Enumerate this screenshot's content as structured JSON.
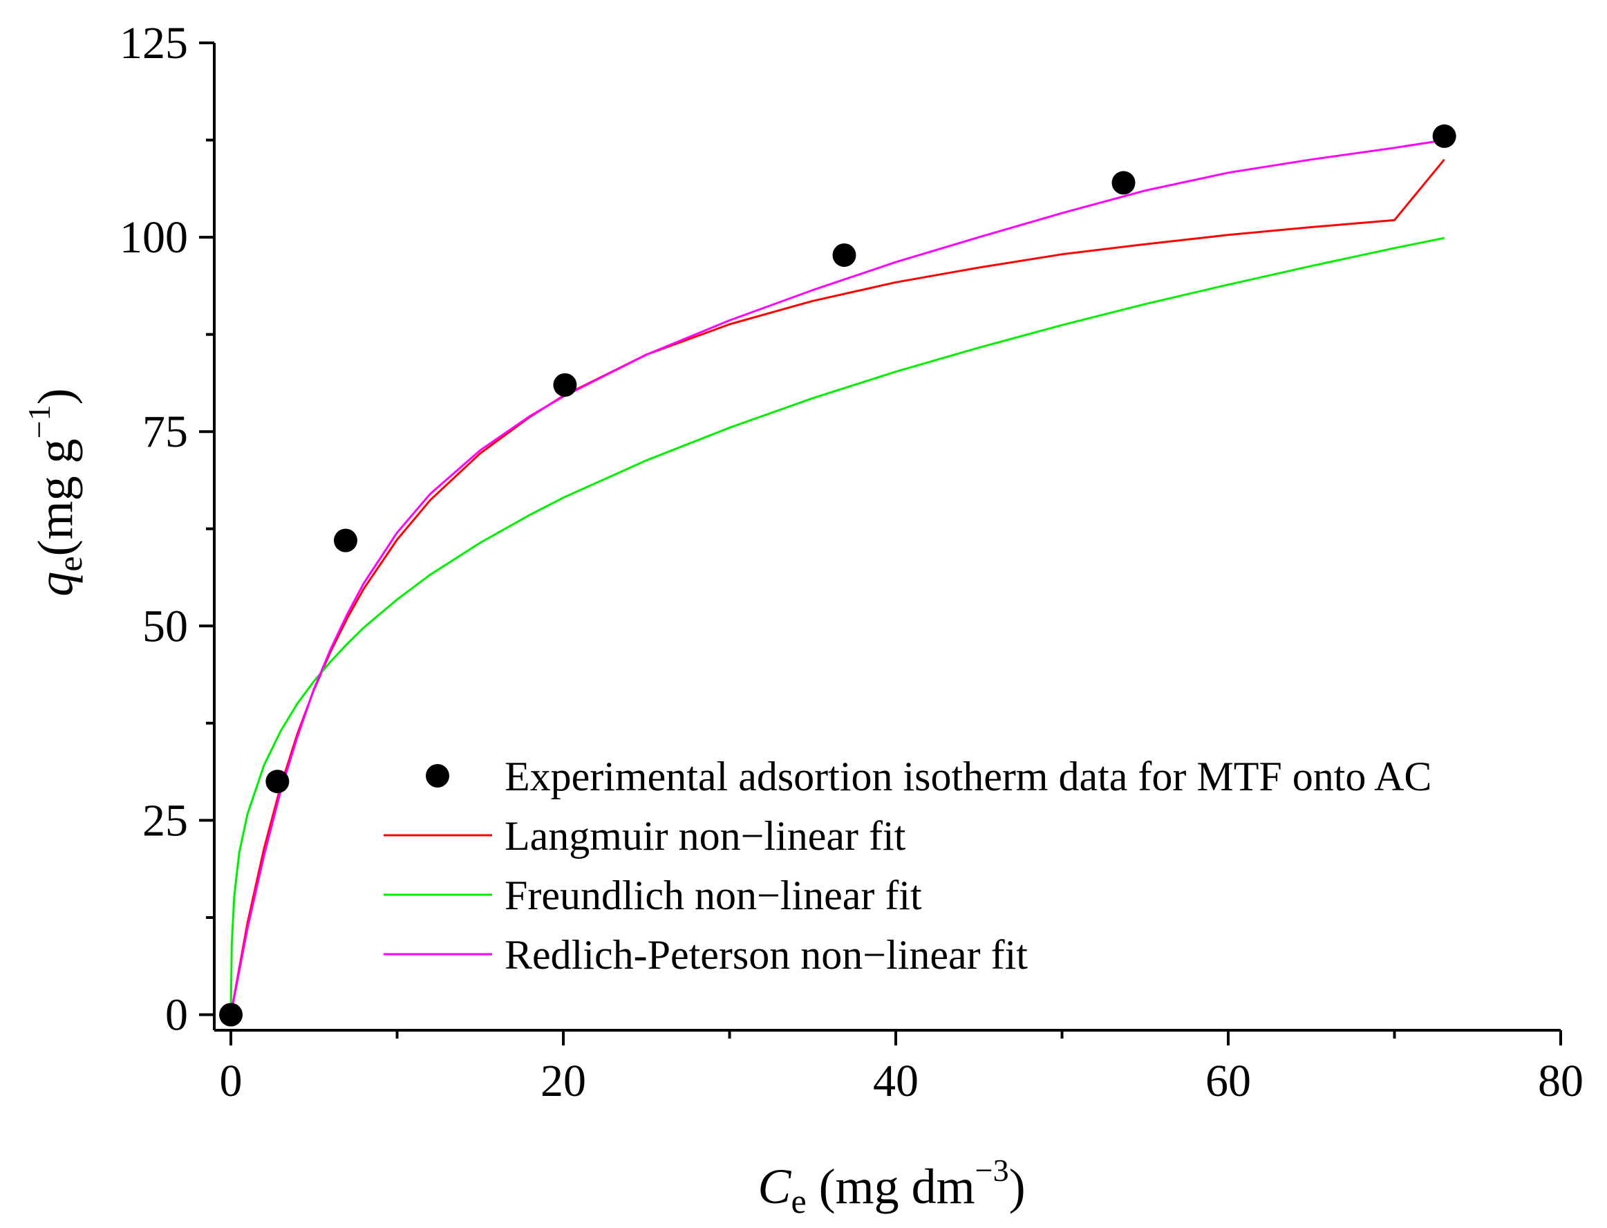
{
  "chart_data": {
    "type": "scatter",
    "title": "",
    "xlabel": {
      "symbol": "C",
      "subscript": "e",
      "unit_prefix": " (mg dm",
      "unit_sup": "−3",
      "unit_suffix": ")"
    },
    "ylabel": {
      "symbol": "q",
      "subscript": "e",
      "unit_prefix": "(mg g",
      "unit_sup": "−1",
      "unit_suffix": ")"
    },
    "xlim": [
      -1,
      80
    ],
    "ylim": [
      -2,
      125
    ],
    "xticks": [
      0,
      20,
      40,
      60,
      80
    ],
    "yticks": [
      0,
      25,
      50,
      75,
      100,
      125
    ],
    "xtick_labels": [
      "0",
      "20",
      "40",
      "60",
      "80"
    ],
    "ytick_labels": [
      "0",
      "25",
      "50",
      "75",
      "100",
      "125"
    ],
    "grid": false,
    "legend_position": "bottom-right",
    "series": [
      {
        "name": "Experimental adsortion isotherm data for MTF onto AC",
        "kind": "points",
        "color": "#000000",
        "x": [
          0,
          2.8,
          6.9,
          20.1,
          36.9,
          53.7,
          73.0
        ],
        "y": [
          0,
          30,
          61,
          81,
          97.7,
          107,
          113
        ]
      },
      {
        "name": "Langmuir non−linear fit",
        "kind": "line",
        "color": "#ff0000",
        "x": [
          0,
          1,
          2,
          3,
          4,
          5,
          6,
          7,
          8,
          10,
          12,
          15,
          18,
          20,
          25,
          30,
          35,
          40,
          45,
          50,
          55,
          60,
          65,
          70,
          73
        ],
        "y": [
          0,
          11.8,
          21.4,
          29.4,
          36.1,
          41.8,
          46.7,
          51.0,
          54.8,
          61.1,
          66.2,
          72.2,
          76.9,
          79.6,
          84.9,
          88.8,
          91.8,
          94.2,
          96.1,
          97.8,
          99.1,
          100.3,
          101.3,
          102.2,
          110.0
        ]
      },
      {
        "name": "Freundlich non−linear fit",
        "kind": "line",
        "color": "#00ee00",
        "x": [
          0,
          0.05,
          0.2,
          0.5,
          1,
          2,
          3,
          4,
          5,
          6,
          7,
          8,
          10,
          12,
          15,
          18,
          20,
          25,
          30,
          35,
          40,
          45,
          50,
          55,
          60,
          65,
          70,
          73
        ],
        "y": [
          0,
          9.0,
          15.2,
          20.8,
          25.8,
          32.1,
          36.5,
          40.0,
          42.9,
          45.4,
          47.7,
          49.8,
          53.4,
          56.6,
          60.7,
          64.3,
          66.5,
          71.3,
          75.5,
          79.3,
          82.7,
          85.8,
          88.7,
          91.4,
          93.9,
          96.3,
          98.6,
          99.9
        ]
      },
      {
        "name": "Redlich-Peterson non−linear fit",
        "kind": "line",
        "color": "#ff00ff",
        "x": [
          0,
          1,
          2,
          3,
          4,
          5,
          6,
          7,
          8,
          10,
          12,
          15,
          18,
          20,
          25,
          30,
          35,
          40,
          45,
          50,
          55,
          60,
          65,
          70,
          73
        ],
        "y": [
          0,
          11.1,
          20.5,
          28.8,
          35.7,
          41.9,
          47.0,
          51.5,
          55.5,
          62.0,
          67.0,
          72.6,
          77.0,
          79.5,
          84.9,
          89.3,
          93.2,
          96.8,
          100.0,
          103.1,
          106.0,
          108.3,
          110.0,
          111.5,
          112.5
        ]
      }
    ]
  }
}
